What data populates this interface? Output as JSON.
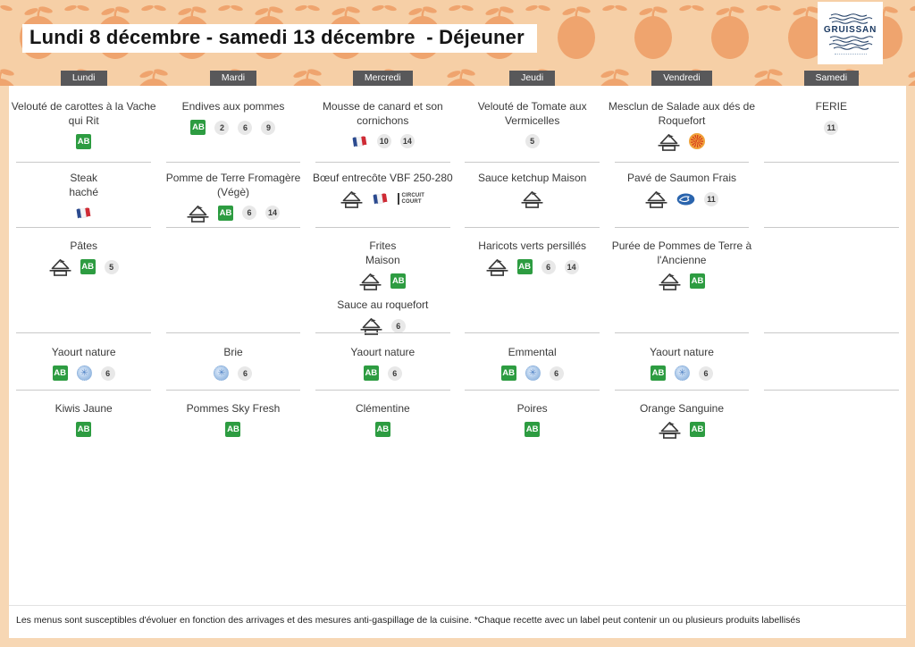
{
  "title": "Lundi 8 décembre - samedi 13 décembre  - Déjeuner",
  "logo": {
    "name": "GRUISSAN"
  },
  "footer_note": "Les menus sont susceptibles d'évoluer en fonction des arrivages et des mesures anti-gaspillage de la cuisine. *Chaque recette avec un label peut contenir un ou plusieurs produits labellisés",
  "days": [
    "Lundi",
    "Mardi",
    "Mercredi",
    "Jeudi",
    "Vendredi",
    "Samedi"
  ],
  "icon_labels": {
    "ab": "AB",
    "circuit_court_line1": "CIRCUIT",
    "circuit_court_line2": "COURT",
    "dairy_glyph": "✳"
  },
  "colors": {
    "page_border": "#f7d7b4",
    "header_bg": "#f6cfa6",
    "pear": "#efa46e",
    "day_tab_bg": "#58585a",
    "ab_green": "#2d9c41",
    "aop_orange": "#f0a23a",
    "aop_red": "#d8401f",
    "fish_blue": "#2a64ad",
    "divider": "#c9c9c9",
    "badge_gray": "#e8e8e8"
  },
  "grid": {
    "columns": [
      {
        "day": "Lundi",
        "cells": [
          [
            {
              "name": "Velouté de carottes à la Vache qui Rit",
              "icons": [
                "ab"
              ],
              "allergens": []
            }
          ],
          [
            {
              "name": "Steak\nhaché",
              "icons": [
                "french-flag"
              ],
              "allergens": []
            }
          ],
          [
            {
              "name": "Pâtes",
              "icons": [
                "fait-maison",
                "ab"
              ],
              "allergens": [
                5
              ]
            }
          ],
          [
            {
              "name": "Yaourt nature",
              "icons": [
                "ab",
                "dairy"
              ],
              "allergens": [
                6
              ]
            }
          ],
          [
            {
              "name": "Kiwis Jaune",
              "icons": [
                "ab"
              ],
              "allergens": []
            }
          ]
        ]
      },
      {
        "day": "Mardi",
        "cells": [
          [
            {
              "name": "Endives aux pommes",
              "icons": [
                "ab"
              ],
              "allergens": [
                2,
                6,
                9
              ]
            }
          ],
          [
            {
              "name": "Pomme de Terre Fromagère (Végè)",
              "icons": [
                "fait-maison",
                "ab"
              ],
              "allergens": [
                6,
                14
              ]
            }
          ],
          [],
          [
            {
              "name": "Brie",
              "icons": [
                "dairy"
              ],
              "allergens": [
                6
              ]
            }
          ],
          [
            {
              "name": "Pommes Sky Fresh",
              "icons": [
                "ab"
              ],
              "allergens": []
            }
          ]
        ]
      },
      {
        "day": "Mercredi",
        "cells": [
          [
            {
              "name": "Mousse de canard et son cornichons",
              "icons": [
                "french-flag"
              ],
              "allergens": [
                10,
                14
              ]
            }
          ],
          [
            {
              "name": "Bœuf entrecôte VBF 250-280",
              "icons": [
                "fait-maison",
                "french-flag",
                "circuit-court"
              ],
              "allergens": []
            }
          ],
          [
            {
              "name": "Frites\nMaison",
              "icons": [
                "fait-maison",
                "ab"
              ],
              "allergens": []
            },
            {
              "name": "Sauce au roquefort",
              "icons": [
                "fait-maison"
              ],
              "allergens": [
                6
              ]
            }
          ],
          [
            {
              "name": "Yaourt nature",
              "icons": [
                "ab"
              ],
              "allergens": [
                6
              ]
            }
          ],
          [
            {
              "name": "Clémentine",
              "icons": [
                "ab"
              ],
              "allergens": []
            }
          ]
        ]
      },
      {
        "day": "Jeudi",
        "cells": [
          [
            {
              "name": "Velouté de Tomate aux Vermicelles",
              "icons": [],
              "allergens": [
                5
              ]
            }
          ],
          [
            {
              "name": "Sauce ketchup Maison",
              "icons": [
                "fait-maison"
              ],
              "allergens": []
            }
          ],
          [
            {
              "name": "Haricots verts persillés",
              "icons": [
                "fait-maison",
                "ab"
              ],
              "allergens": [
                6,
                14
              ]
            }
          ],
          [
            {
              "name": "Emmental",
              "icons": [
                "ab",
                "dairy"
              ],
              "allergens": [
                6
              ]
            }
          ],
          [
            {
              "name": "Poires",
              "icons": [
                "ab"
              ],
              "allergens": []
            }
          ]
        ]
      },
      {
        "day": "Vendredi",
        "cells": [
          [
            {
              "name": "Mesclun de Salade aux dés de Roquefort",
              "icons": [
                "fait-maison",
                "aop"
              ],
              "allergens": []
            }
          ],
          [
            {
              "name": "Pavé de Saumon Frais",
              "icons": [
                "fait-maison",
                "fish"
              ],
              "allergens": [
                11
              ]
            }
          ],
          [
            {
              "name": "Purée de Pommes de Terre à l'Ancienne",
              "icons": [
                "fait-maison",
                "ab"
              ],
              "allergens": []
            }
          ],
          [
            {
              "name": "Yaourt nature",
              "icons": [
                "ab",
                "dairy"
              ],
              "allergens": [
                6
              ]
            }
          ],
          [
            {
              "name": "Orange Sanguine",
              "icons": [
                "fait-maison",
                "ab"
              ],
              "allergens": []
            }
          ]
        ]
      },
      {
        "day": "Samedi",
        "cells": [
          [
            {
              "name": "FERIE",
              "icons": [],
              "allergens": [
                11
              ]
            }
          ],
          [],
          [],
          [],
          []
        ]
      }
    ]
  }
}
